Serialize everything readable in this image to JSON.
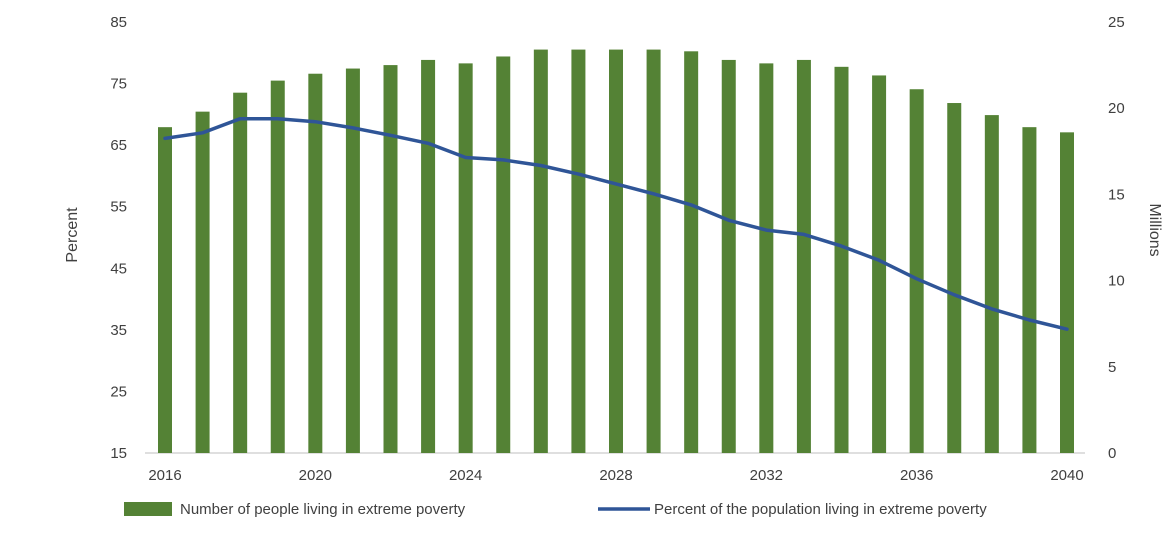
{
  "chart_data": {
    "type": "bar+line",
    "x_ticks": [
      "2016",
      "2020",
      "2024",
      "2028",
      "2032",
      "2036",
      "2040"
    ],
    "x": [
      2016,
      2017,
      2018,
      2019,
      2020,
      2021,
      2022,
      2023,
      2024,
      2025,
      2026,
      2027,
      2028,
      2029,
      2030,
      2031,
      2032,
      2033,
      2034,
      2035,
      2036,
      2037,
      2038,
      2039,
      2040
    ],
    "series": [
      {
        "name": "Number of people living in extreme poverty",
        "type": "bar",
        "axis": "right",
        "color": "#548235",
        "values": [
          18.9,
          19.8,
          20.9,
          21.6,
          22.0,
          22.3,
          22.5,
          22.8,
          22.6,
          23.0,
          23.4,
          23.4,
          23.4,
          23.4,
          23.3,
          22.8,
          22.6,
          22.8,
          22.4,
          21.9,
          21.1,
          20.3,
          19.6,
          18.9,
          18.6
        ]
      },
      {
        "name": "Percent of the population living in extreme poverty",
        "type": "line",
        "axis": "left",
        "color": "#2F5597",
        "values": [
          66.1,
          67.0,
          69.3,
          69.3,
          68.8,
          67.8,
          66.6,
          65.3,
          63.0,
          62.6,
          61.7,
          60.3,
          58.7,
          57.1,
          55.3,
          52.8,
          51.2,
          50.5,
          48.6,
          46.3,
          43.3,
          40.7,
          38.4,
          36.6,
          35.1
        ]
      }
    ],
    "y_left": {
      "label": "Percent",
      "ticks": [
        15,
        25,
        35,
        45,
        55,
        65,
        75,
        85
      ],
      "range": [
        15,
        85
      ]
    },
    "y_right": {
      "label": "Millions",
      "ticks": [
        0,
        5,
        10,
        15,
        20,
        25
      ],
      "range": [
        0,
        25
      ]
    },
    "legend": {
      "position": "bottom"
    },
    "grid": false
  }
}
